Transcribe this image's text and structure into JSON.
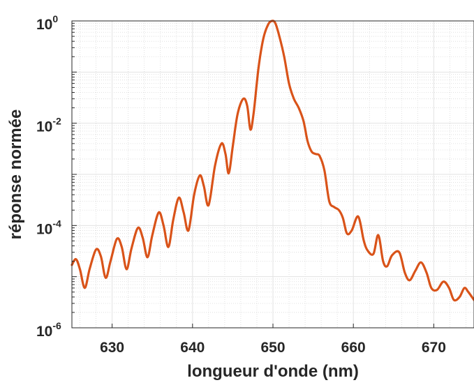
{
  "chart_data": {
    "type": "line",
    "title": "",
    "xlabel": "longueur d'onde (nm)",
    "ylabel": "réponse normée",
    "xlim": [
      625,
      675
    ],
    "ylim": [
      1e-06,
      1
    ],
    "yscale": "log",
    "grid": true,
    "minor_grid": true,
    "x_ticks": [
      630,
      640,
      650,
      660,
      670
    ],
    "y_ticks": [
      {
        "value": 1e-06,
        "base": "10",
        "exp": "-6"
      },
      {
        "value": 0.0001,
        "base": "10",
        "exp": "-4"
      },
      {
        "value": 0.01,
        "base": "10",
        "exp": "-2"
      },
      {
        "value": 1,
        "base": "10",
        "exp": "0"
      }
    ],
    "series": [
      {
        "color": "#d95319",
        "points": [
          [
            625.0,
            1.7e-05
          ],
          [
            625.5,
            2.2e-05
          ],
          [
            626.0,
            1.4e-05
          ],
          [
            626.6,
            6e-06
          ],
          [
            627.2,
            1.4e-05
          ],
          [
            628.0,
            3.4e-05
          ],
          [
            628.6,
            2.5e-05
          ],
          [
            629.2,
            9.5e-06
          ],
          [
            629.8,
            2e-05
          ],
          [
            630.6,
            5.5e-05
          ],
          [
            631.2,
            3.8e-05
          ],
          [
            631.8,
            1.4e-05
          ],
          [
            632.4,
            3.5e-05
          ],
          [
            633.2,
            9e-05
          ],
          [
            633.8,
            5.8e-05
          ],
          [
            634.4,
            2.4e-05
          ],
          [
            635.0,
            6.5e-05
          ],
          [
            635.8,
            0.00018
          ],
          [
            636.4,
            0.0001
          ],
          [
            637.0,
            3.8e-05
          ],
          [
            637.6,
            0.00013
          ],
          [
            638.3,
            0.00035
          ],
          [
            638.9,
            0.00018
          ],
          [
            639.5,
            8e-05
          ],
          [
            640.2,
            0.0004
          ],
          [
            640.9,
            0.00095
          ],
          [
            641.4,
            0.0006
          ],
          [
            642.0,
            0.00025
          ],
          [
            642.8,
            0.0015
          ],
          [
            643.6,
            0.004
          ],
          [
            644.1,
            0.0025
          ],
          [
            644.5,
            0.00105
          ],
          [
            645.0,
            0.0035
          ],
          [
            645.6,
            0.015
          ],
          [
            646.3,
            0.03
          ],
          [
            646.8,
            0.022
          ],
          [
            647.2,
            0.0075
          ],
          [
            647.6,
            0.016
          ],
          [
            648.2,
            0.12
          ],
          [
            648.8,
            0.45
          ],
          [
            649.4,
            0.85
          ],
          [
            649.9,
            1.0
          ],
          [
            650.3,
            0.9
          ],
          [
            650.8,
            0.5
          ],
          [
            651.4,
            0.2
          ],
          [
            652.0,
            0.06
          ],
          [
            652.6,
            0.03
          ],
          [
            653.2,
            0.02
          ],
          [
            653.8,
            0.011
          ],
          [
            654.3,
            0.0045
          ],
          [
            654.8,
            0.0028
          ],
          [
            655.3,
            0.0025
          ],
          [
            655.8,
            0.0023
          ],
          [
            656.4,
            0.0012
          ],
          [
            657.0,
            0.0003
          ],
          [
            657.6,
            0.00023
          ],
          [
            658.2,
            0.0002
          ],
          [
            658.7,
            0.00014
          ],
          [
            659.2,
            7e-05
          ],
          [
            659.8,
            8e-05
          ],
          [
            660.6,
            0.00015
          ],
          [
            661.3,
            5e-05
          ],
          [
            661.8,
            3.2e-05
          ],
          [
            662.5,
            2.8e-05
          ],
          [
            663.1,
            6.5e-05
          ],
          [
            663.7,
            2e-05
          ],
          [
            664.2,
            1.6e-05
          ],
          [
            664.8,
            2.6e-05
          ],
          [
            665.7,
            3e-05
          ],
          [
            666.4,
            1.2e-05
          ],
          [
            667.0,
            8.5e-06
          ],
          [
            667.7,
            1.3e-05
          ],
          [
            668.4,
            1.9e-05
          ],
          [
            669.1,
            1.2e-05
          ],
          [
            669.7,
            6e-06
          ],
          [
            670.4,
            5.5e-06
          ],
          [
            671.2,
            8e-06
          ],
          [
            671.9,
            6e-06
          ],
          [
            672.5,
            3.5e-06
          ],
          [
            673.2,
            4e-06
          ],
          [
            673.8,
            6e-06
          ],
          [
            674.3,
            5e-06
          ],
          [
            675.0,
            3.5e-06
          ]
        ]
      }
    ]
  }
}
